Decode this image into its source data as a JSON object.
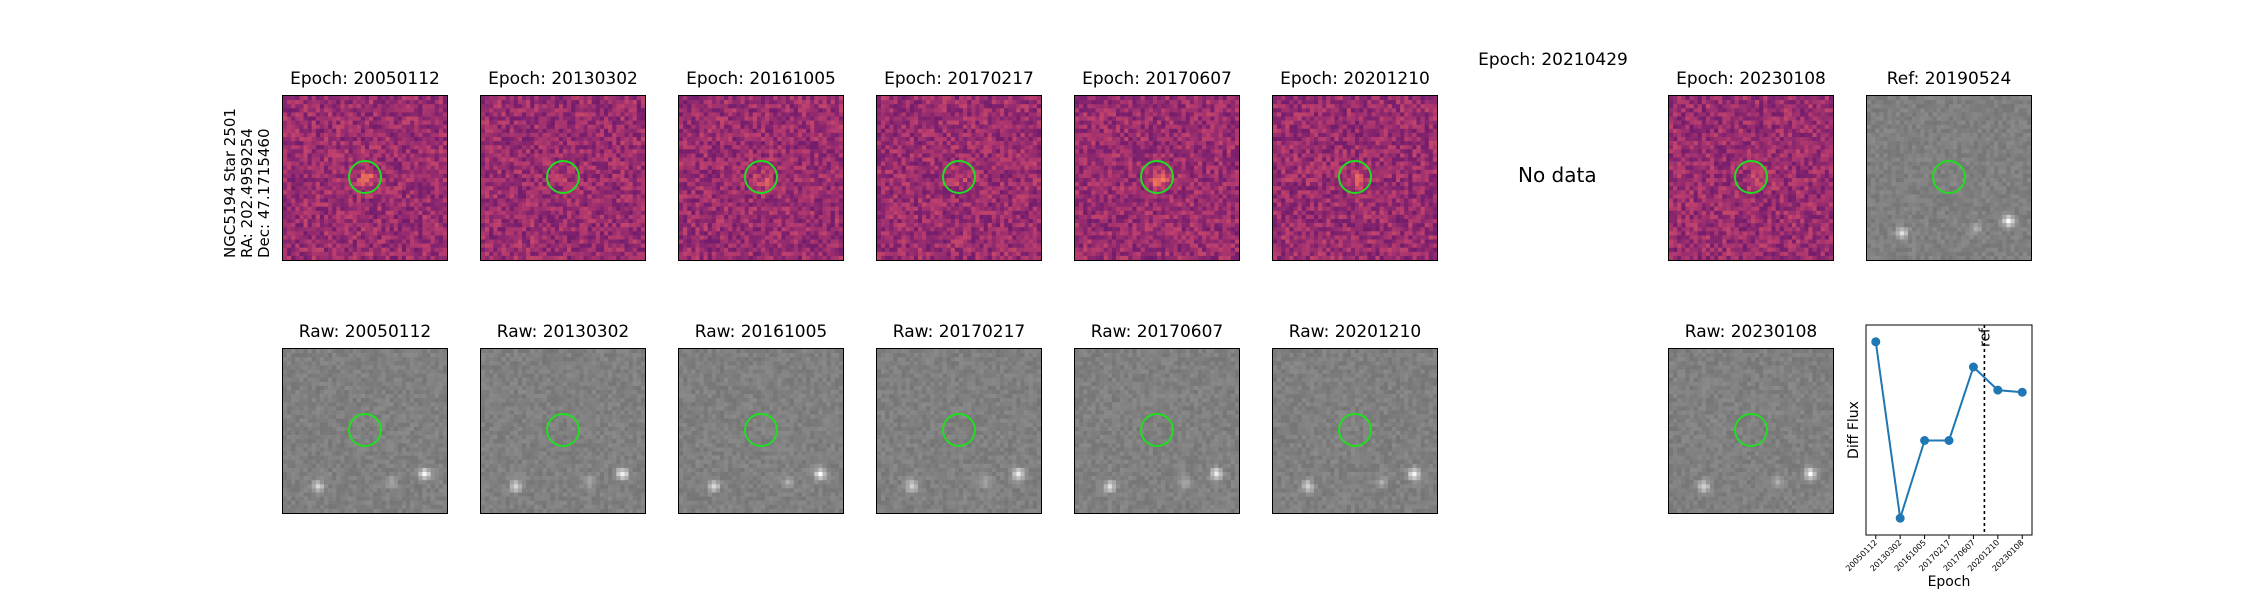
{
  "object": {
    "name": "NGC5194 Star 2501",
    "ra": "RA: 202.4959254",
    "dec": "Dec: 47.1715460"
  },
  "diff_row": [
    {
      "title": "Epoch: 20050112",
      "has_data": true,
      "src": 0.95,
      "seed": 11
    },
    {
      "title": "Epoch: 20130302",
      "has_data": true,
      "src": 0.2,
      "seed": 23
    },
    {
      "title": "Epoch: 20161005",
      "has_data": true,
      "src": 0.5,
      "seed": 37
    },
    {
      "title": "Epoch: 20170217",
      "has_data": true,
      "src": 0.35,
      "seed": 41
    },
    {
      "title": "Epoch: 20170607",
      "has_data": true,
      "src": 0.85,
      "seed": 53
    },
    {
      "title": "Epoch: 20201210",
      "has_data": true,
      "src": 0.55,
      "seed": 67
    },
    {
      "title": "Epoch: 20210429",
      "has_data": false
    },
    {
      "title": "Epoch: 20230108",
      "has_data": true,
      "src": 0.45,
      "seed": 79
    }
  ],
  "no_data_text": "No data",
  "ref_panel": {
    "title": "Ref: 20190524",
    "seed": 91
  },
  "raw_row": [
    {
      "title": "Raw: 20050112",
      "has_data": true,
      "seed": 101
    },
    {
      "title": "Raw: 20130302",
      "has_data": true,
      "seed": 113
    },
    {
      "title": "Raw: 20161005",
      "has_data": true,
      "seed": 127
    },
    {
      "title": "Raw: 20170217",
      "has_data": true,
      "seed": 131
    },
    {
      "title": "Raw: 20170607",
      "has_data": true,
      "seed": 149
    },
    {
      "title": "Raw: 20201210",
      "has_data": true,
      "seed": 157
    },
    {
      "title": "",
      "has_data": false
    },
    {
      "title": "Raw: 20230108",
      "has_data": true,
      "seed": 163
    }
  ],
  "colors": {
    "aperture": "#22dd22",
    "series": "#1f77b4",
    "axis": "#000000"
  },
  "chart_data": {
    "type": "line",
    "title": "",
    "xlabel": "Epoch",
    "ylabel": "Diff Flux",
    "categories": [
      "20050112",
      "20130302",
      "20161005",
      "20170217",
      "20170607",
      "20201210",
      "20230108"
    ],
    "x": [
      0,
      1,
      2,
      3,
      4,
      5,
      6
    ],
    "values": [
      0.92,
      0.08,
      0.45,
      0.45,
      0.8,
      0.69,
      0.68
    ],
    "ylim": [
      0,
      1
    ],
    "ref_line": {
      "x": 4.45,
      "label": "ref"
    },
    "grid": false
  }
}
